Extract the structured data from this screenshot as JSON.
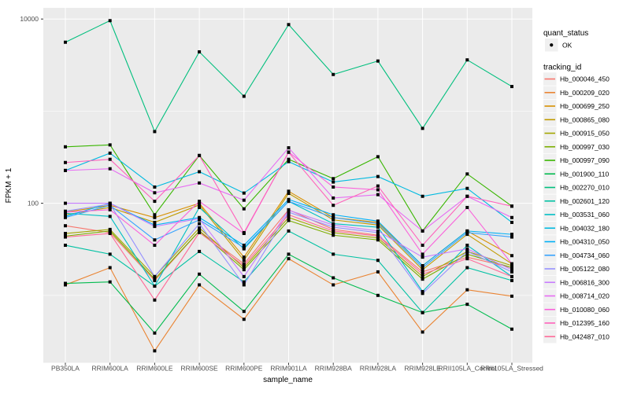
{
  "figure": {
    "background": "#FFFFFF",
    "panel_background": "#EBEBEB",
    "gridline_color": "#FFFFFF",
    "tick_color": "#333333",
    "tick_label_color": "#4D4D4D",
    "point_color": "#000000"
  },
  "axes": {
    "x_title": "sample_name",
    "y_title": "FPKM + 1"
  },
  "legend": {
    "quant_status_title": "quant_status",
    "quant_status_items": [
      {
        "label": "OK",
        "marker": "black-point"
      }
    ],
    "tracking_id_title": "tracking_id"
  },
  "chart_data": {
    "type": "line",
    "title": "",
    "xlabel": "sample_name",
    "ylabel": "FPKM + 1",
    "y_scale": "log10",
    "ylim": [
      1.8,
      13200
    ],
    "grid": true,
    "legend_position": "right",
    "y_tick_values": [
      10000,
      100
    ],
    "y_major_gridlines": [
      10000,
      100
    ],
    "y_minor_gridlines": [
      1000,
      10
    ],
    "point_marker": "small-black-square",
    "quant_status": "OK",
    "categories": [
      "PB350LA",
      "RRIM600LA",
      "RRIM600LE",
      "RRIM600SE",
      "RRIM600PE",
      "RRIM901LA",
      "RRIM928BA",
      "RRIM928LA",
      "RRIM928LE",
      "RRII105LA_Control",
      "RRII105LA_Stressed"
    ],
    "series": [
      {
        "name": "Hb_000046_450",
        "color": "#F8766D",
        "values": [
          57,
          48,
          14.5,
          50,
          22,
          85,
          52,
          45,
          18,
          26,
          20
        ]
      },
      {
        "name": "Hb_000209_020",
        "color": "#EA8331",
        "values": [
          13,
          20,
          2.5,
          13,
          5.5,
          25,
          13,
          18,
          4,
          11.5,
          9.8
        ]
      },
      {
        "name": "Hb_000699_250",
        "color": "#D89000",
        "values": [
          80,
          95,
          70,
          100,
          26,
          135,
          70,
          62,
          21,
          50,
          27
        ]
      },
      {
        "name": "Hb_000865_080",
        "color": "#C09B00",
        "values": [
          75,
          90,
          62,
          96,
          24,
          128,
          66,
          58,
          19,
          46,
          22
        ]
      },
      {
        "name": "Hb_000915_050",
        "color": "#A3A500",
        "values": [
          47,
          52,
          16,
          54,
          20,
          70,
          48,
          42,
          16,
          30,
          21
        ]
      },
      {
        "name": "Hb_000997_030",
        "color": "#7CAE00",
        "values": [
          44,
          50,
          15,
          50,
          19,
          65,
          45,
          40,
          15,
          28,
          20
        ]
      },
      {
        "name": "Hb_000997_090",
        "color": "#39B600",
        "values": [
          410,
          430,
          75,
          330,
          87,
          300,
          185,
          320,
          50,
          208,
          93
        ]
      },
      {
        "name": "Hb_001900_110",
        "color": "#00BB4E",
        "values": [
          13.5,
          14,
          3.9,
          17,
          6.7,
          28,
          15.5,
          10,
          6.5,
          8,
          4.3
        ]
      },
      {
        "name": "Hb_002270_010",
        "color": "#00BF7D",
        "values": [
          5600,
          9600,
          600,
          4400,
          1450,
          8700,
          2500,
          3500,
          650,
          3600,
          1850
        ]
      },
      {
        "name": "Hb_002601_120",
        "color": "#00C1A3",
        "values": [
          35,
          28,
          12.6,
          30,
          14,
          50,
          28,
          24,
          6.5,
          20,
          14.5
        ]
      },
      {
        "name": "Hb_003531_060",
        "color": "#00BFC4",
        "values": [
          78,
          72,
          12.6,
          90,
          32,
          105,
          60,
          55,
          11,
          35,
          16
        ]
      },
      {
        "name": "Hb_004032_180",
        "color": "#00BAE0",
        "values": [
          227,
          350,
          150,
          220,
          129,
          283,
          170,
          195,
          119,
          145,
          62
        ]
      },
      {
        "name": "Hb_004310_050",
        "color": "#00B0F6",
        "values": [
          72,
          100,
          58,
          70,
          35,
          110,
          75,
          64,
          21,
          50,
          46
        ]
      },
      {
        "name": "Hb_004734_060",
        "color": "#35A2FF",
        "values": [
          70,
          95,
          40,
          66,
          33,
          105,
          70,
          60,
          20,
          48,
          43
        ]
      },
      {
        "name": "Hb_005122_080",
        "color": "#9590FF",
        "values": [
          82,
          98,
          16,
          60,
          13,
          80,
          55,
          48,
          10.5,
          30,
          18
        ]
      },
      {
        "name": "Hb_006816_300",
        "color": "#C77CFF",
        "values": [
          100,
          100,
          56,
          68,
          16,
          84,
          58,
          50,
          26,
          32,
          19
        ]
      },
      {
        "name": "Hb_008714_020",
        "color": "#E76BF3",
        "values": [
          227,
          237,
          130,
          166,
          108,
          400,
          114,
          124,
          50,
          119,
          70
        ]
      },
      {
        "name": "Hb_010080_060",
        "color": "#FA62DB",
        "values": [
          80,
          85,
          35,
          105,
          47,
          360,
          150,
          140,
          28,
          90,
          22
        ]
      },
      {
        "name": "Hb_012395_160",
        "color": "#FF62BC",
        "values": [
          277,
          300,
          105,
          330,
          48,
          357,
          95,
          154,
          35,
          119,
          93
        ]
      },
      {
        "name": "Hb_042487_010",
        "color": "#FF6A98",
        "values": [
          43,
          47,
          8.9,
          48,
          21,
          75,
          50,
          44,
          17,
          25,
          16
        ]
      }
    ]
  }
}
